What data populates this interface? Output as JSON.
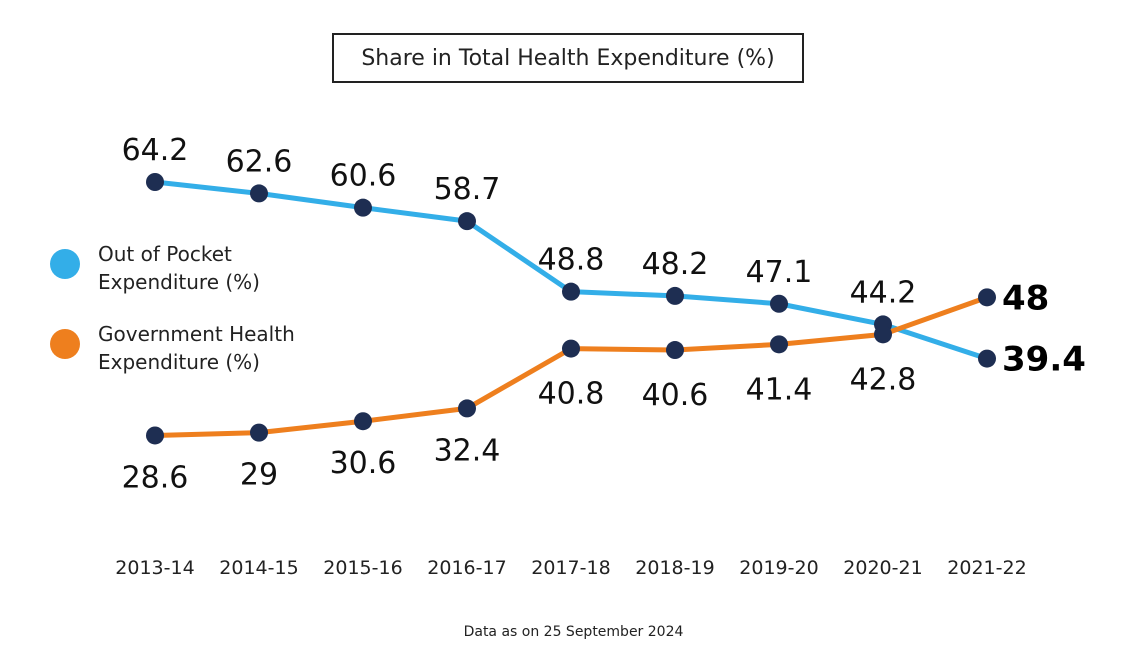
{
  "chart_data": {
    "type": "line",
    "title": "Share in Total Health Expenditure (%)",
    "categories": [
      "2013-14",
      "2014-15",
      "2015-16",
      "2016-17",
      "2017-18",
      "2018-19",
      "2019-20",
      "2020-21",
      "2021-22"
    ],
    "series": [
      {
        "name": "Out of Pocket Expenditure (%)",
        "color": "#33aee8",
        "values": [
          64.2,
          62.6,
          60.6,
          58.7,
          48.8,
          48.2,
          47.1,
          44.2,
          39.4
        ],
        "labels": [
          "64.2",
          "62.6",
          "60.6",
          "58.7",
          "48.8",
          "48.2",
          "47.1",
          "44.2",
          "39.4"
        ]
      },
      {
        "name": "Government Health Expenditure (%)",
        "color": "#ee7f1e",
        "values": [
          28.6,
          29,
          30.6,
          32.4,
          40.8,
          40.6,
          41.4,
          42.8,
          48
        ],
        "labels": [
          "28.6",
          "29",
          "30.6",
          "32.4",
          "40.8",
          "40.6",
          "41.4",
          "42.8",
          "48"
        ]
      }
    ],
    "marker_color": "#1e2e52",
    "legend_position": "left",
    "grid": false,
    "footnote": "Data as on 25 September 2024"
  }
}
